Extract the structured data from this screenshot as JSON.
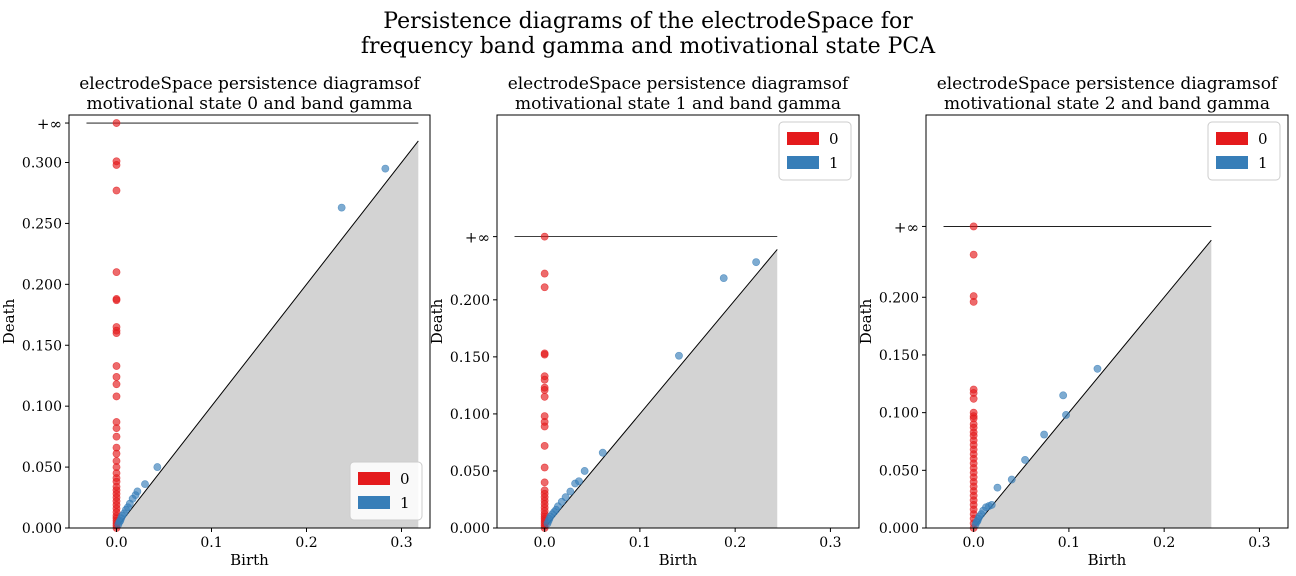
{
  "suptitle": [
    "Persistence diagrams of the electrodeSpace for",
    "frequency band gamma and motivational state PCA"
  ],
  "colors": {
    "h0": "#e41a1c",
    "h1": "#377eb8",
    "diag_fill": "#d3d3d3"
  },
  "chart_data": [
    {
      "type": "scatter",
      "title": [
        "electrodeSpace persistence diagramsof",
        "motivational state 0 and band gamma"
      ],
      "xlabel": "Birth",
      "ylabel": "Death",
      "xlim": [
        -0.05,
        0.33
      ],
      "ylim": [
        0.0,
        0.339
      ],
      "inf_level": 0.3324,
      "inf_label": "+∞",
      "diag_max": 0.3177,
      "xticks": [
        0.0,
        0.1,
        0.2,
        0.3
      ],
      "xtick_labels": [
        "0.0",
        "0.1",
        "0.2",
        "0.3"
      ],
      "yticks": [
        0.0,
        0.05,
        0.1,
        0.15,
        0.2,
        0.25,
        0.3
      ],
      "ytick_labels": [
        "0.000",
        "0.050",
        "0.100",
        "0.150",
        "0.200",
        "0.250",
        "0.300"
      ],
      "legend": {
        "position": "lower-right",
        "entries": [
          "0",
          "1"
        ]
      },
      "series": [
        {
          "name": "0",
          "color": "#e41a1c",
          "points": [
            [
              0,
              0.3324
            ],
            [
              0,
              0.301
            ],
            [
              0,
              0.298
            ],
            [
              0,
              0.277
            ],
            [
              0,
              0.21
            ],
            [
              0,
              0.188
            ],
            [
              0,
              0.187
            ],
            [
              0,
              0.165
            ],
            [
              0,
              0.162
            ],
            [
              0,
              0.16
            ],
            [
              0,
              0.133
            ],
            [
              0,
              0.124
            ],
            [
              0,
              0.118
            ],
            [
              0,
              0.108
            ],
            [
              0,
              0.087
            ],
            [
              0,
              0.082
            ],
            [
              0,
              0.075
            ],
            [
              0,
              0.066
            ],
            [
              0,
              0.061
            ],
            [
              0,
              0.055
            ],
            [
              0,
              0.05
            ],
            [
              0,
              0.045
            ],
            [
              0,
              0.041
            ],
            [
              0,
              0.038
            ],
            [
              0,
              0.034
            ],
            [
              0,
              0.031
            ],
            [
              0,
              0.028
            ],
            [
              0,
              0.025
            ],
            [
              0,
              0.022
            ],
            [
              0,
              0.019
            ],
            [
              0,
              0.016
            ],
            [
              0,
              0.013
            ],
            [
              0,
              0.01
            ],
            [
              0,
              0.008
            ],
            [
              0,
              0.006
            ],
            [
              0,
              0.004
            ],
            [
              0,
              0.002
            ],
            [
              0,
              0.0
            ]
          ]
        },
        {
          "name": "1",
          "color": "#377eb8",
          "points": [
            [
              0.283,
              0.295
            ],
            [
              0.237,
              0.263
            ],
            [
              0.043,
              0.05
            ],
            [
              0.03,
              0.036
            ],
            [
              0.022,
              0.03
            ],
            [
              0.02,
              0.027
            ],
            [
              0.017,
              0.024
            ],
            [
              0.014,
              0.02
            ],
            [
              0.012,
              0.017
            ],
            [
              0.01,
              0.015
            ],
            [
              0.008,
              0.012
            ],
            [
              0.006,
              0.01
            ],
            [
              0.005,
              0.008
            ],
            [
              0.004,
              0.006
            ],
            [
              0.003,
              0.005
            ],
            [
              0.002,
              0.003
            ]
          ]
        }
      ]
    },
    {
      "type": "scatter",
      "title": [
        "electrodeSpace persistence diagramsof",
        "motivational state 1 and band gamma"
      ],
      "xlabel": "Birth",
      "ylabel": "Death",
      "xlim": [
        -0.05,
        0.33
      ],
      "ylim": [
        0.0,
        0.362
      ],
      "inf_level": 0.2554,
      "inf_label": "+∞",
      "diag_max": 0.2442,
      "xticks": [
        0.0,
        0.1,
        0.2,
        0.3
      ],
      "xtick_labels": [
        "0.0",
        "0.1",
        "0.2",
        "0.3"
      ],
      "yticks": [
        0.0,
        0.05,
        0.1,
        0.15,
        0.2
      ],
      "ytick_labels": [
        "0.000",
        "0.050",
        "0.100",
        "0.150",
        "0.200"
      ],
      "legend": {
        "position": "top-right",
        "entries": [
          "0",
          "1"
        ]
      },
      "series": [
        {
          "name": "0",
          "color": "#e41a1c",
          "points": [
            [
              0,
              0.2554
            ],
            [
              0,
              0.223
            ],
            [
              0,
              0.211
            ],
            [
              0,
              0.153
            ],
            [
              0,
              0.152
            ],
            [
              0,
              0.133
            ],
            [
              0,
              0.13
            ],
            [
              0,
              0.123
            ],
            [
              0,
              0.121
            ],
            [
              0,
              0.115
            ],
            [
              0,
              0.098
            ],
            [
              0,
              0.093
            ],
            [
              0,
              0.089
            ],
            [
              0,
              0.072
            ],
            [
              0,
              0.053
            ],
            [
              0,
              0.04
            ],
            [
              0,
              0.033
            ],
            [
              0,
              0.03
            ],
            [
              0,
              0.027
            ],
            [
              0,
              0.024
            ],
            [
              0,
              0.021
            ],
            [
              0,
              0.018
            ],
            [
              0,
              0.015
            ],
            [
              0,
              0.012
            ],
            [
              0,
              0.01
            ],
            [
              0,
              0.008
            ],
            [
              0,
              0.006
            ],
            [
              0,
              0.004
            ],
            [
              0,
              0.002
            ],
            [
              0,
              0.0
            ]
          ]
        },
        {
          "name": "1",
          "color": "#377eb8",
          "points": [
            [
              0.222,
              0.233
            ],
            [
              0.188,
              0.219
            ],
            [
              0.141,
              0.151
            ],
            [
              0.061,
              0.066
            ],
            [
              0.042,
              0.05
            ],
            [
              0.036,
              0.041
            ],
            [
              0.032,
              0.039
            ],
            [
              0.027,
              0.032
            ],
            [
              0.022,
              0.027
            ],
            [
              0.018,
              0.023
            ],
            [
              0.014,
              0.019
            ],
            [
              0.012,
              0.016
            ],
            [
              0.01,
              0.014
            ],
            [
              0.008,
              0.012
            ],
            [
              0.006,
              0.01
            ],
            [
              0.005,
              0.008
            ],
            [
              0.004,
              0.006
            ],
            [
              0.003,
              0.004
            ]
          ]
        }
      ]
    },
    {
      "type": "scatter",
      "title": [
        "electrodeSpace persistence diagramsof",
        "motivational state 2 and band gamma"
      ],
      "xlabel": "Birth",
      "ylabel": "Death",
      "xlim": [
        -0.05,
        0.33
      ],
      "ylim": [
        0.0,
        0.358
      ],
      "inf_level": 0.2614,
      "inf_label": "+∞",
      "diag_max": 0.2495,
      "xticks": [
        0.0,
        0.1,
        0.2,
        0.3
      ],
      "xtick_labels": [
        "0.0",
        "0.1",
        "0.2",
        "0.3"
      ],
      "yticks": [
        0.0,
        0.05,
        0.1,
        0.15,
        0.2
      ],
      "ytick_labels": [
        "0.000",
        "0.050",
        "0.100",
        "0.150",
        "0.200"
      ],
      "legend": {
        "position": "top-right",
        "entries": [
          "0",
          "1"
        ]
      },
      "series": [
        {
          "name": "0",
          "color": "#e41a1c",
          "points": [
            [
              0,
              0.2614
            ],
            [
              0,
              0.237
            ],
            [
              0,
              0.201
            ],
            [
              0,
              0.196
            ],
            [
              0,
              0.12
            ],
            [
              0,
              0.117
            ],
            [
              0,
              0.112
            ],
            [
              0,
              0.1
            ],
            [
              0,
              0.097
            ],
            [
              0,
              0.095
            ],
            [
              0,
              0.09
            ],
            [
              0,
              0.087
            ],
            [
              0,
              0.083
            ],
            [
              0,
              0.08
            ],
            [
              0,
              0.076
            ],
            [
              0,
              0.072
            ],
            [
              0,
              0.068
            ],
            [
              0,
              0.064
            ],
            [
              0,
              0.06
            ],
            [
              0,
              0.056
            ],
            [
              0,
              0.052
            ],
            [
              0,
              0.048
            ],
            [
              0,
              0.044
            ],
            [
              0,
              0.04
            ],
            [
              0,
              0.036
            ],
            [
              0,
              0.032
            ],
            [
              0,
              0.028
            ],
            [
              0,
              0.024
            ],
            [
              0,
              0.02
            ],
            [
              0,
              0.016
            ],
            [
              0,
              0.012
            ],
            [
              0,
              0.008
            ],
            [
              0,
              0.004
            ],
            [
              0,
              0.0
            ]
          ]
        },
        {
          "name": "1",
          "color": "#377eb8",
          "points": [
            [
              0.13,
              0.138
            ],
            [
              0.094,
              0.115
            ],
            [
              0.097,
              0.098
            ],
            [
              0.074,
              0.081
            ],
            [
              0.054,
              0.059
            ],
            [
              0.04,
              0.042
            ],
            [
              0.025,
              0.035
            ],
            [
              0.019,
              0.02
            ],
            [
              0.016,
              0.019
            ],
            [
              0.013,
              0.018
            ],
            [
              0.01,
              0.015
            ],
            [
              0.008,
              0.012
            ],
            [
              0.006,
              0.01
            ],
            [
              0.005,
              0.008
            ],
            [
              0.004,
              0.006
            ],
            [
              0.003,
              0.005
            ],
            [
              0.002,
              0.003
            ]
          ]
        }
      ]
    }
  ]
}
